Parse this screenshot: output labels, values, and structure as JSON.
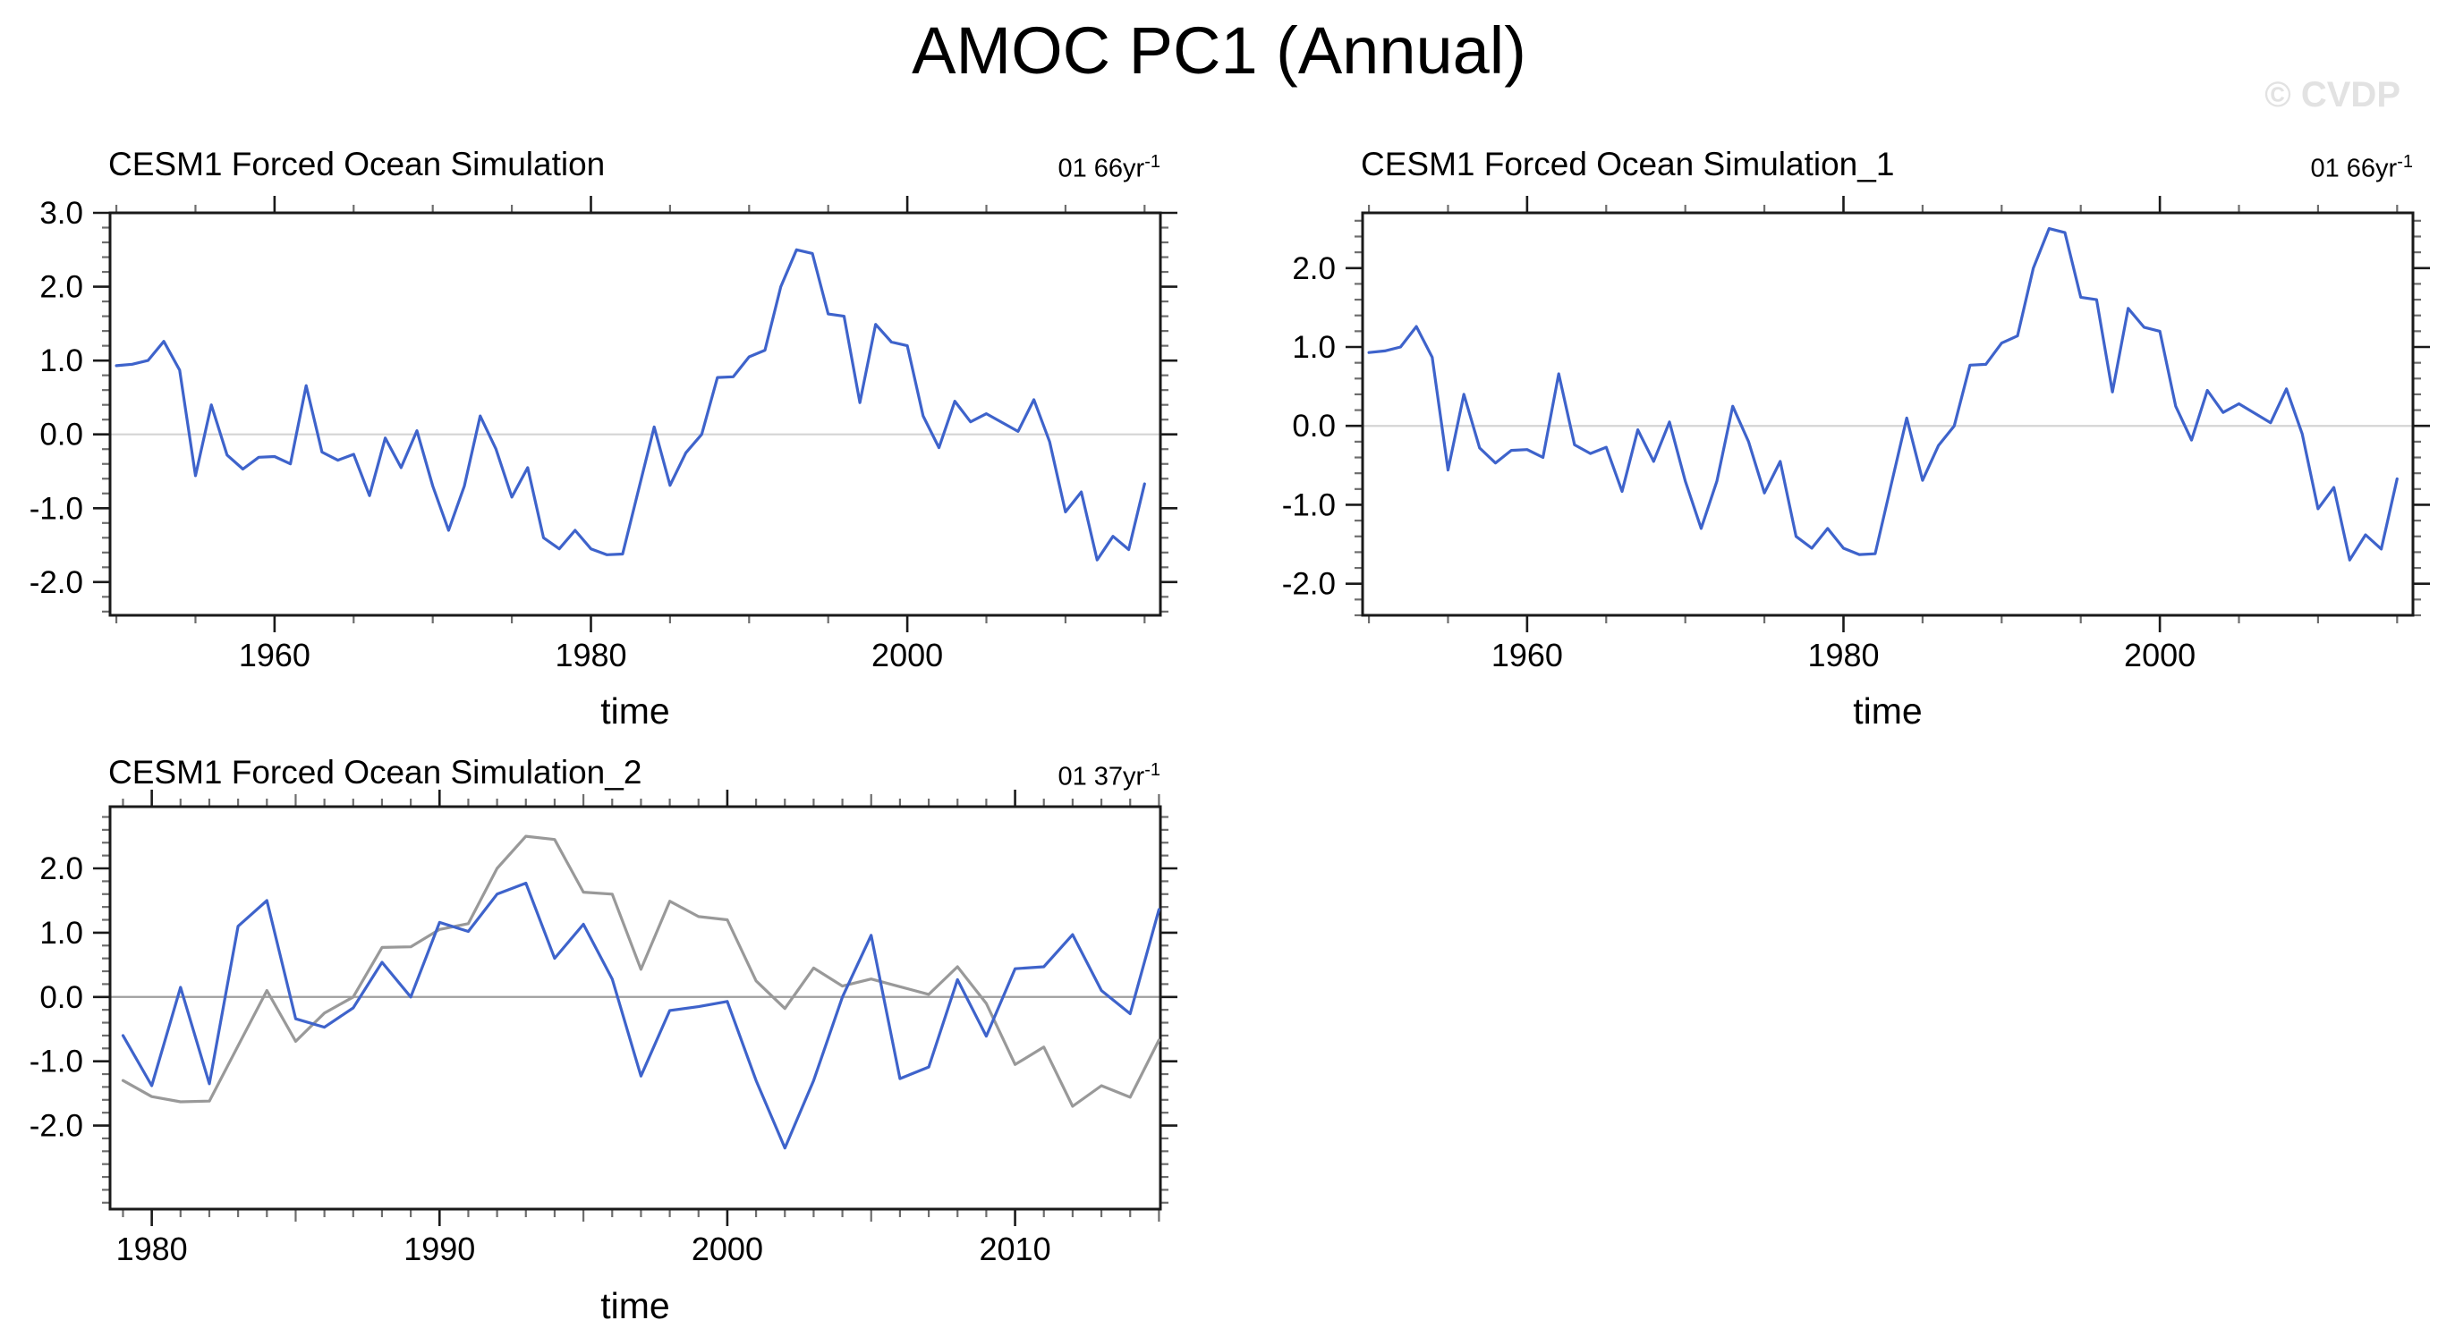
{
  "page_title": "AMOC PC1 (Annual)",
  "watermark": "© CVDP",
  "axes": {
    "time_label": "time"
  },
  "colors": {
    "line_blue": "#3e63cb",
    "line_gray": "#999999",
    "frame": "#1a1a1a",
    "major_tick": "#1a1a1a",
    "minor_tick": "#6e6e6e",
    "zero_line_top_panels": "#d4d4d4",
    "zero_line_bottom_panel": "#9e9e9e",
    "watermark_gray": "#e2e2e2",
    "text": "#000000"
  },
  "chart_data": [
    {
      "type": "line",
      "title": "CESM1 Forced Ocean Simulation",
      "corner_label": {
        "base": "01 66yr",
        "sup": "-1"
      },
      "xlabel": "time",
      "ylabel": "",
      "x_start": 1950,
      "x_step": 1,
      "xlim": [
        1949.6,
        2016.0
      ],
      "ylim": [
        -2.45,
        3.0
      ],
      "xticks_major": [
        1960,
        1980,
        2000
      ],
      "xtick_labels": [
        "1960",
        "1980",
        "2000"
      ],
      "xtick_minor_step": 5,
      "ytick_values": [
        3,
        2,
        1,
        0,
        -1,
        -2
      ],
      "ytick_labels": [
        "3.0",
        "2.0",
        "1.0",
        "0.0",
        "-1.0",
        "-2.0"
      ],
      "ytick_minor_step": 0.2,
      "grid": false,
      "legend": "none",
      "zero_line": true,
      "series": [
        {
          "name": "blue_line",
          "color_key": "line_blue",
          "values": [
            0.93,
            0.95,
            1.0,
            1.26,
            0.87,
            -0.56,
            0.4,
            -0.28,
            -0.47,
            -0.31,
            -0.3,
            -0.4,
            0.66,
            -0.24,
            -0.35,
            -0.27,
            -0.83,
            -0.05,
            -0.45,
            0.05,
            -0.7,
            -1.3,
            -0.7,
            0.25,
            -0.2,
            -0.85,
            -0.45,
            -1.4,
            -1.55,
            -1.3,
            -1.55,
            -1.63,
            -1.62,
            -0.76,
            0.1,
            -0.69,
            -0.25,
            0.0,
            0.77,
            0.78,
            1.05,
            1.14,
            2.0,
            2.5,
            2.45,
            1.63,
            1.6,
            0.43,
            1.49,
            1.25,
            1.2,
            0.25,
            -0.18,
            0.45,
            0.17,
            0.28,
            0.16,
            0.04,
            0.47,
            -0.1,
            -1.05,
            -0.78,
            -1.7,
            -1.38,
            -1.56,
            -0.67
          ]
        }
      ]
    },
    {
      "type": "line",
      "title": "CESM1 Forced Ocean Simulation_1",
      "corner_label": {
        "base": "01 66yr",
        "sup": "-1"
      },
      "xlabel": "time",
      "ylabel": "",
      "x_start": 1950,
      "x_step": 1,
      "xlim": [
        1949.6,
        2016.0
      ],
      "ylim": [
        -2.4,
        2.7
      ],
      "xticks_major": [
        1960,
        1980,
        2000
      ],
      "xtick_labels": [
        "1960",
        "1980",
        "2000"
      ],
      "xtick_minor_step": 5,
      "ytick_values": [
        2,
        1,
        0,
        -1,
        -2
      ],
      "ytick_labels": [
        "2.0",
        "1.0",
        "0.0",
        "-1.0",
        "-2.0"
      ],
      "ytick_minor_step": 0.2,
      "grid": false,
      "legend": "none",
      "zero_line": true,
      "series": [
        {
          "name": "blue_line",
          "color_key": "line_blue",
          "values": [
            0.93,
            0.95,
            1.0,
            1.26,
            0.87,
            -0.56,
            0.4,
            -0.28,
            -0.47,
            -0.31,
            -0.3,
            -0.4,
            0.66,
            -0.24,
            -0.35,
            -0.27,
            -0.83,
            -0.05,
            -0.45,
            0.05,
            -0.7,
            -1.3,
            -0.7,
            0.25,
            -0.2,
            -0.85,
            -0.45,
            -1.4,
            -1.55,
            -1.3,
            -1.55,
            -1.63,
            -1.62,
            -0.76,
            0.1,
            -0.69,
            -0.25,
            0.0,
            0.77,
            0.78,
            1.05,
            1.14,
            2.0,
            2.5,
            2.45,
            1.63,
            1.6,
            0.43,
            1.49,
            1.25,
            1.2,
            0.25,
            -0.18,
            0.45,
            0.17,
            0.28,
            0.16,
            0.04,
            0.47,
            -0.1,
            -1.05,
            -0.78,
            -1.7,
            -1.38,
            -1.56,
            -0.67
          ]
        }
      ]
    },
    {
      "type": "line",
      "title": "CESM1 Forced Ocean Simulation_2",
      "corner_label": {
        "base": "01 37yr",
        "sup": "-1"
      },
      "xlabel": "time",
      "ylabel": "",
      "x_start": 1979,
      "x_step": 1,
      "xlim": [
        1978.55,
        2015.05
      ],
      "ylim": [
        -3.3,
        2.96
      ],
      "xticks_major": [
        1980,
        1990,
        2000,
        2010
      ],
      "xtick_labels": [
        "1980",
        "1990",
        "2000",
        "2010"
      ],
      "xtick_minor_step": 1,
      "xtick_mid_step": 5,
      "ytick_values": [
        2,
        1,
        0,
        -1,
        -2
      ],
      "ytick_labels": [
        "2.0",
        "1.0",
        "0.0",
        "-1.0",
        "-2.0"
      ],
      "ytick_minor_step": 0.2,
      "grid": false,
      "legend": "none",
      "zero_line": true,
      "series": [
        {
          "name": "blue_line",
          "color_key": "line_blue",
          "values": [
            -0.6,
            -1.38,
            0.15,
            -1.35,
            1.1,
            1.5,
            -0.34,
            -0.47,
            -0.17,
            0.54,
            0.0,
            1.16,
            1.02,
            1.6,
            1.77,
            0.6,
            1.13,
            0.28,
            -1.23,
            -0.21,
            -0.15,
            -0.07,
            -1.3,
            -2.35,
            -1.3,
            0.0,
            0.96,
            -1.27,
            -1.09,
            0.27,
            -0.61,
            0.44,
            0.47,
            0.97,
            0.1,
            -0.26,
            1.36
          ]
        },
        {
          "name": "gray_line",
          "color_key": "line_gray",
          "values": [
            -1.3,
            -1.55,
            -1.63,
            -1.62,
            -0.76,
            0.1,
            -0.69,
            -0.25,
            0.0,
            0.77,
            0.78,
            1.05,
            1.14,
            2.0,
            2.5,
            2.45,
            1.63,
            1.6,
            0.43,
            1.49,
            1.25,
            1.2,
            0.25,
            -0.18,
            0.45,
            0.17,
            0.28,
            0.16,
            0.04,
            0.47,
            -0.1,
            -1.05,
            -0.78,
            -1.7,
            -1.38,
            -1.56,
            -0.67
          ]
        }
      ]
    }
  ]
}
